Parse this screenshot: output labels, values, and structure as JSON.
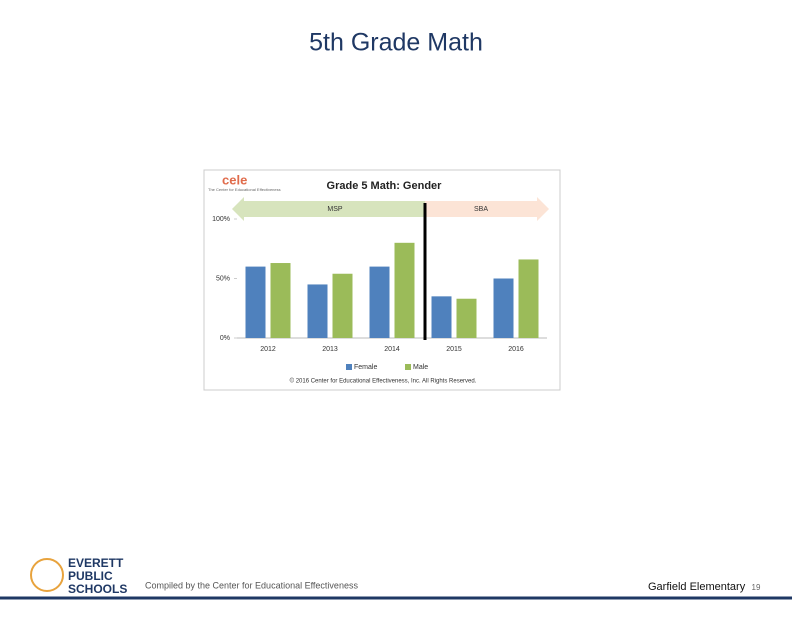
{
  "slide": {
    "title": "5th Grade Math",
    "footer": "Compiled by the Center for Educational Effectiveness",
    "school": "Garfield Elementary",
    "page": 19,
    "logo": [
      "EVERETT",
      "PUBLIC",
      "SCHOOLS"
    ]
  },
  "chart_data": {
    "type": "bar",
    "title": "Grade 5 Math: Gender",
    "brand": "cele",
    "brand_subtitle": "The Center for Educational Effectiveness",
    "copyright": "© 2016 Center for Educational Effectiveness, Inc. All Rights Reserved.",
    "categories": [
      "2012",
      "2013",
      "2014",
      "2015",
      "2016"
    ],
    "series": [
      {
        "name": "Female",
        "color": "#4f81bd",
        "values": [
          60,
          45,
          60,
          35,
          50
        ]
      },
      {
        "name": "Male",
        "color": "#9bbb59",
        "values": [
          63,
          54,
          80,
          33,
          66
        ]
      }
    ],
    "ylim": [
      0,
      100
    ],
    "yticks": [
      {
        "value": 0,
        "label": "0%"
      },
      {
        "value": 50,
        "label": "50%"
      },
      {
        "value": 100,
        "label": "100%"
      }
    ],
    "annotations": [
      {
        "text": "MSP",
        "color": "#d7e4bd"
      },
      {
        "text": "SBA",
        "color": "#fce4d6"
      }
    ]
  }
}
